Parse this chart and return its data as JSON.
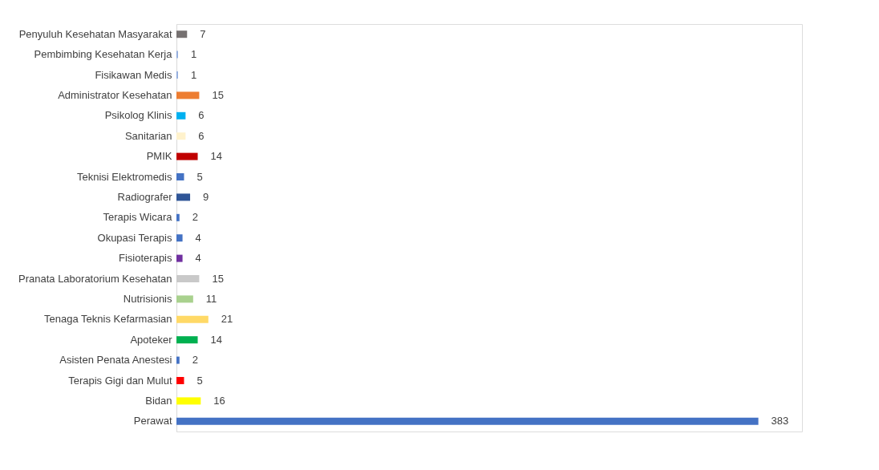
{
  "chart_data": {
    "type": "bar",
    "orientation": "horizontal",
    "data_labels": true,
    "grid": false,
    "categories": [
      "Penyuluh Kesehatan Masyarakat",
      "Pembimbing Kesehatan Kerja",
      "Fisikawan Medis",
      "Administrator Kesehatan",
      "Psikolog Klinis",
      "Sanitarian",
      "PMIK",
      "Teknisi Elektromedis",
      "Radiografer",
      "Terapis Wicara",
      "Okupasi Terapis",
      "Fisioterapis",
      "Pranata Laboratorium Kesehatan",
      "Nutrisionis",
      "Tenaga Teknis Kefarmasian",
      "Apoteker",
      "Asisten Penata Anestesi",
      "Terapis Gigi dan Mulut",
      "Bidan",
      "Perawat"
    ],
    "values": [
      7,
      1,
      1,
      15,
      6,
      6,
      14,
      5,
      9,
      2,
      4,
      4,
      15,
      11,
      21,
      14,
      2,
      5,
      16,
      383
    ],
    "colors": [
      "#767171",
      "#8faadc",
      "#8faadc",
      "#ed7d31",
      "#00b0f0",
      "#fff2cc",
      "#c00000",
      "#4472c4",
      "#2f5597",
      "#4472c4",
      "#4472c4",
      "#7030a0",
      "#c9c9c9",
      "#a9d18e",
      "#ffd966",
      "#00b050",
      "#4472c4",
      "#ff0000",
      "#ffff00",
      "#4472c4"
    ]
  }
}
